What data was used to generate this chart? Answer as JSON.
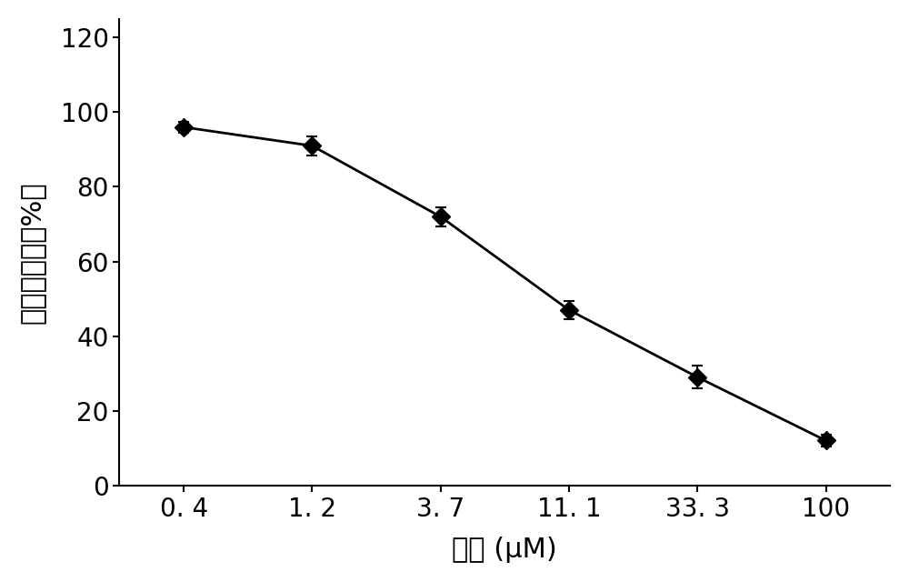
{
  "x_labels": [
    "0. 4",
    "1. 2",
    "3. 7",
    "11. 1",
    "33. 3",
    "100"
  ],
  "x_positions": [
    0,
    1,
    2,
    3,
    4,
    5
  ],
  "y_values": [
    96.0,
    91.0,
    72.0,
    47.0,
    29.0,
    12.0
  ],
  "y_errors": [
    1.5,
    2.5,
    2.5,
    2.5,
    3.0,
    1.5
  ],
  "xlabel": "浓度 (μM)",
  "ylabel": "细胞生存率（%）",
  "ylim": [
    0,
    125
  ],
  "yticks": [
    0,
    20,
    40,
    60,
    80,
    100,
    120
  ],
  "line_color": "#000000",
  "marker_color": "#000000",
  "marker": "D",
  "marker_size": 10,
  "line_width": 2.0,
  "background_color": "#ffffff",
  "label_fontsize": 22,
  "tick_fontsize": 20
}
